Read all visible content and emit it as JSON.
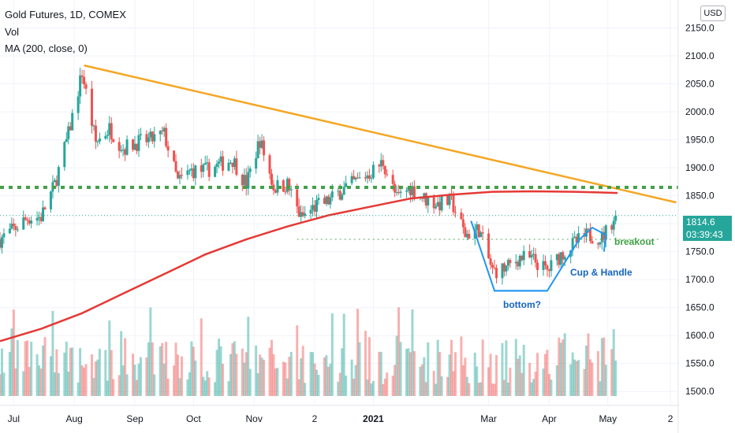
{
  "header": {
    "symbol_line": "Gold Futures, 1D, COMEX",
    "volume_label": "Vol",
    "ma_label": "MA (200, close, 0)"
  },
  "currency_button": "USD",
  "price_label": {
    "price": "1814.6",
    "countdown": "03:39:43"
  },
  "annotations": {
    "breakout": "breakout",
    "cup_handle": "Cup & Handle",
    "bottom": "bottom?"
  },
  "colors": {
    "up": "#26a69a",
    "down": "#ef5350",
    "ma": "#e53935",
    "trendline": "#f5a623",
    "resistance": "#43a047",
    "pattern": "#2196f3",
    "grid": "#f0f3fa"
  },
  "chart_data": {
    "type": "candlestick",
    "title": "Gold Futures, 1D, COMEX",
    "y_axis": {
      "ticks": [
        1500,
        1550,
        1600,
        1650,
        1700,
        1750,
        1800,
        1850,
        1900,
        1950,
        2000,
        2050,
        2100,
        2150
      ],
      "tick_labels": [
        "1500.0",
        "1550.0",
        "1600.0",
        "1650.0",
        "1700.0",
        "1750.0",
        "1800.0",
        "1850.0",
        "1900.0",
        "1950.0",
        "2000.0",
        "2050.0",
        "2100.0",
        "2150.0"
      ],
      "range": [
        1475,
        2200
      ]
    },
    "x_axis": {
      "labels": [
        "Jul",
        "Aug",
        "Sep",
        "Oct",
        "Nov",
        "2",
        "2021",
        "Mar",
        "Apr",
        "May",
        "2"
      ],
      "range": [
        "2020-06-24",
        "2021-06-06"
      ]
    },
    "grid": true,
    "last_price": 1814.6,
    "moving_average": {
      "name": "MA (200, close, 0)",
      "points": [
        [
          "2020-06-24",
          1590
        ],
        [
          "2020-07-15",
          1612
        ],
        [
          "2020-08-05",
          1640
        ],
        [
          "2020-08-26",
          1675
        ],
        [
          "2020-09-16",
          1710
        ],
        [
          "2020-10-07",
          1745
        ],
        [
          "2020-10-28",
          1772
        ],
        [
          "2020-11-18",
          1795
        ],
        [
          "2020-12-09",
          1815
        ],
        [
          "2020-12-30",
          1830
        ],
        [
          "2021-01-20",
          1845
        ],
        [
          "2021-02-10",
          1852
        ],
        [
          "2021-03-03",
          1857
        ],
        [
          "2021-03-24",
          1858
        ],
        [
          "2021-04-14",
          1857
        ],
        [
          "2021-05-06",
          1855
        ]
      ]
    },
    "drawings": {
      "trendline": [
        [
          "2020-08-06",
          2083
        ],
        [
          "2021-06-05",
          1838
        ]
      ],
      "resistance_level": 1865,
      "support_level": 1772,
      "bottom_line": [
        [
          "2021-03-04",
          1680
        ],
        [
          "2021-03-31",
          1680
        ]
      ],
      "cup": [
        [
          "2021-02-20",
          1805
        ],
        [
          "2021-03-04",
          1680
        ],
        [
          "2021-03-31",
          1680
        ],
        [
          "2021-04-16",
          1770
        ]
      ],
      "handle": [
        [
          "2021-04-16",
          1770
        ],
        [
          "2021-04-23",
          1793
        ],
        [
          "2021-04-30",
          1780
        ],
        [
          "2021-04-29",
          1750
        ]
      ]
    },
    "close_series": [
      [
        "2020-06-24",
        1772
      ],
      [
        "2020-07-01",
        1790
      ],
      [
        "2020-07-08",
        1810
      ],
      [
        "2020-07-15",
        1812
      ],
      [
        "2020-07-22",
        1870
      ],
      [
        "2020-07-29",
        1960
      ],
      [
        "2020-08-05",
        2070
      ],
      [
        "2020-08-12",
        1945
      ],
      [
        "2020-08-19",
        1970
      ],
      [
        "2020-08-26",
        1935
      ],
      [
        "2020-09-02",
        1945
      ],
      [
        "2020-09-09",
        1950
      ],
      [
        "2020-09-16",
        1960
      ],
      [
        "2020-09-23",
        1875
      ],
      [
        "2020-09-30",
        1895
      ],
      [
        "2020-10-07",
        1895
      ],
      [
        "2020-10-14",
        1905
      ],
      [
        "2020-10-21",
        1915
      ],
      [
        "2020-10-28",
        1870
      ],
      [
        "2020-11-04",
        1950
      ],
      [
        "2020-11-11",
        1865
      ],
      [
        "2020-11-18",
        1870
      ],
      [
        "2020-11-25",
        1810
      ],
      [
        "2020-12-02",
        1830
      ],
      [
        "2020-12-09",
        1840
      ],
      [
        "2020-12-16",
        1860
      ],
      [
        "2020-12-23",
        1875
      ],
      [
        "2020-12-30",
        1890
      ],
      [
        "2021-01-06",
        1910
      ],
      [
        "2021-01-13",
        1845
      ],
      [
        "2021-01-20",
        1865
      ],
      [
        "2021-01-27",
        1845
      ],
      [
        "2021-02-03",
        1835
      ],
      [
        "2021-02-10",
        1840
      ],
      [
        "2021-02-17",
        1780
      ],
      [
        "2021-02-24",
        1790
      ],
      [
        "2021-03-03",
        1715
      ],
      [
        "2021-03-10",
        1720
      ],
      [
        "2021-03-17",
        1740
      ],
      [
        "2021-03-24",
        1735
      ],
      [
        "2021-03-31",
        1715
      ],
      [
        "2021-04-07",
        1745
      ],
      [
        "2021-04-14",
        1765
      ],
      [
        "2021-04-21",
        1780
      ],
      [
        "2021-04-28",
        1775
      ],
      [
        "2021-05-05",
        1814.6
      ]
    ]
  }
}
